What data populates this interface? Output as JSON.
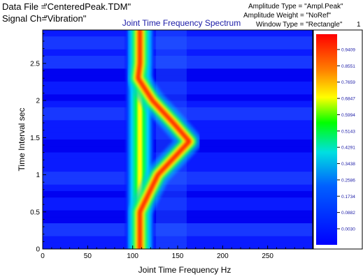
{
  "header": {
    "data_file_label": "Data File =",
    "data_file_value": "\"CenteredPeak.TDM\"",
    "signal_label": "Signal Ch=",
    "signal_value": "\"Vibration\"",
    "amplitude_type": "Amplitude Type = \"Ampl.Peak\"",
    "amplitude_weight": "Amplitude Weight = \"NoRef\"",
    "window_type": "Window Type = \"Rectangle\"",
    "window_param": "1"
  },
  "chart_data": {
    "type": "heatmap",
    "title": "Joint Time Frequency Spectrum",
    "xlabel": "Joint Time Frequency  Hz",
    "ylabel": "Time Interval  sec",
    "xlim": [
      0,
      300
    ],
    "ylim": [
      0,
      2.95
    ],
    "x_ticks": [
      "0",
      "50",
      "100",
      "150",
      "200",
      "250"
    ],
    "y_ticks": [
      "0",
      "0.5",
      "1",
      "1.5",
      "2",
      "2.5"
    ],
    "ridge": {
      "time": [
        0.0,
        0.5,
        1.0,
        1.45,
        1.7,
        2.0,
        2.3,
        2.5,
        2.95
      ],
      "frequency": [
        108,
        108,
        128,
        163,
        145,
        122,
        106,
        108,
        108
      ]
    },
    "carrier_frequency": 108,
    "colorbar": {
      "ticks": [
        "0.9409",
        "0.8551",
        "0.7659",
        "0.6847",
        "0.5994",
        "0.5143",
        "0.4291",
        "0.3438",
        "0.2586",
        "0.1734",
        "0.0882",
        "0.0030"
      ],
      "colors": [
        "#ff0000",
        "#ff8000",
        "#ffff00",
        "#00ff00",
        "#00e0e0",
        "#0060ff",
        "#0000ff"
      ]
    },
    "grid": false,
    "legend_position": "right"
  }
}
